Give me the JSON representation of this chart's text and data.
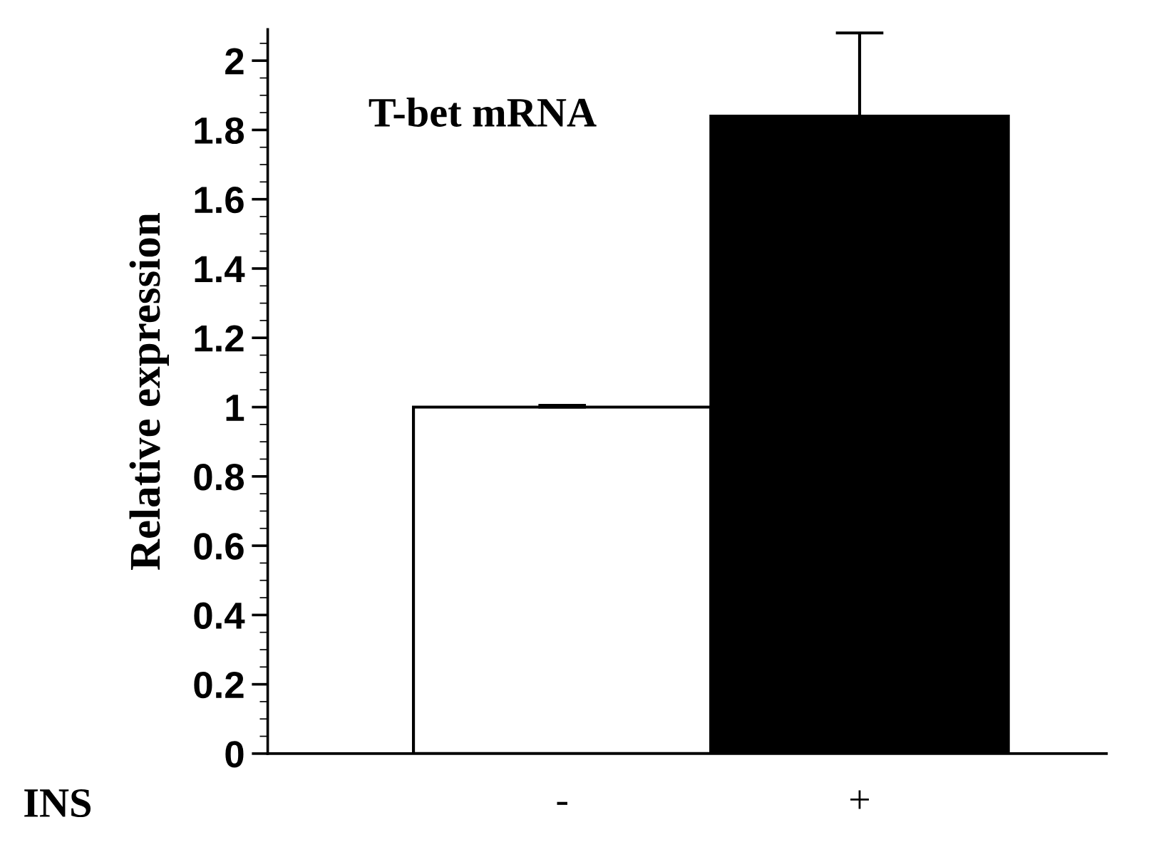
{
  "chart_data": {
    "type": "bar",
    "ylabel": "Relative expression",
    "xlabel": "INS",
    "annotations": [
      "T-bet mRNA"
    ],
    "categories": [
      "-",
      "+"
    ],
    "values": [
      1.0,
      1.84
    ],
    "colors": [
      "#ffffff",
      "#000000"
    ],
    "errors": [
      [
        1.0,
        1.005
      ],
      [
        1.84,
        2.08
      ]
    ],
    "ylim": [
      0,
      2.09
    ],
    "yticks": [
      0,
      0.2,
      0.4,
      0.6,
      0.8,
      1,
      1.2,
      1.4,
      1.6,
      1.8,
      2
    ],
    "grid": false,
    "legend": false
  }
}
